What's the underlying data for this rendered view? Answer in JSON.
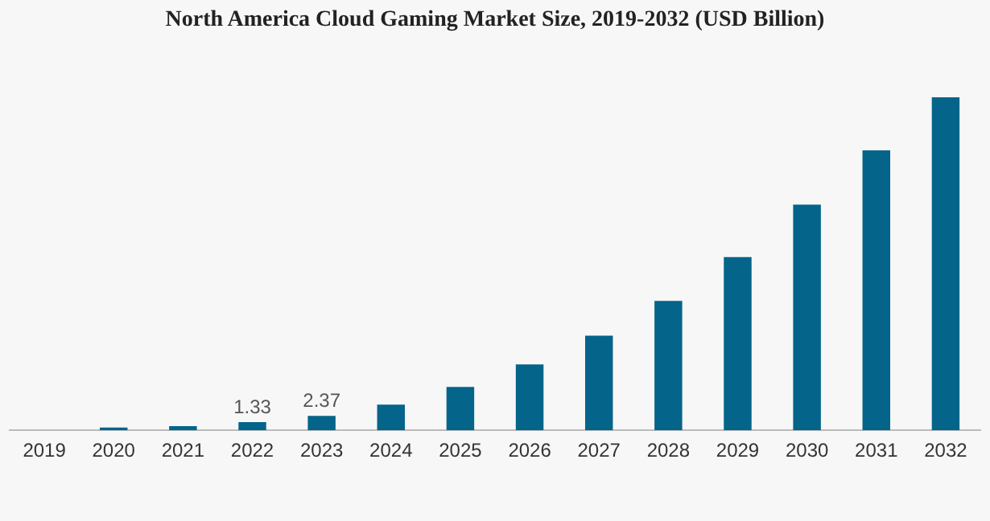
{
  "chart_data": {
    "type": "bar",
    "title": "North America Cloud Gaming Market Size, 2019-2032 (USD Billion)",
    "categories": [
      "2019",
      "2020",
      "2021",
      "2022",
      "2023",
      "2024",
      "2025",
      "2026",
      "2027",
      "2028",
      "2029",
      "2030",
      "2031",
      "2032"
    ],
    "values": [
      null,
      0.45,
      0.7,
      1.33,
      2.37,
      4.2,
      7.1,
      10.8,
      15.5,
      21.2,
      28.4,
      37.0,
      45.9,
      54.6
    ],
    "value_labels": [
      null,
      null,
      null,
      "1.33",
      "2.37",
      null,
      null,
      null,
      null,
      null,
      null,
      null,
      null,
      null
    ],
    "color": "#05648a",
    "grid": false,
    "legend": false
  }
}
